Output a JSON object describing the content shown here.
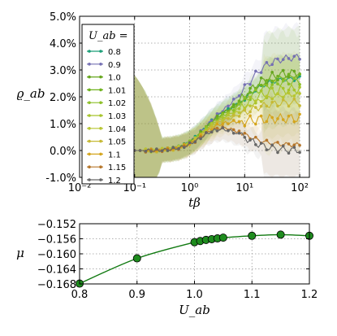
{
  "chart_data": [
    {
      "type": "line",
      "xlabel": "tβ",
      "ylabel": "ϱ_ab",
      "xscale": "log",
      "xlim": [
        0.01,
        150
      ],
      "ylim": [
        -1.0,
        5.0
      ],
      "xticks": [
        {
          "v": 0.01,
          "label": "10⁻²"
        },
        {
          "v": 0.1,
          "label": "10⁻¹"
        },
        {
          "v": 1,
          "label": "10⁰"
        },
        {
          "v": 10,
          "label": "10¹"
        },
        {
          "v": 100,
          "label": "10²"
        }
      ],
      "yticks": [
        {
          "v": -1,
          "label": "-1.0%"
        },
        {
          "v": 0,
          "label": "0.0%"
        },
        {
          "v": 1,
          "label": "1.0%"
        },
        {
          "v": 2,
          "label": "2.0%"
        },
        {
          "v": 3,
          "label": "3.0%"
        },
        {
          "v": 4,
          "label": "4.0%"
        },
        {
          "v": 5,
          "label": "5.0%"
        }
      ],
      "grid": true,
      "legend": {
        "title": "U_ab =",
        "placement": "top-left"
      },
      "series": [
        {
          "name": "0.8",
          "color": "#1b9e77",
          "final": 2.7
        },
        {
          "name": "0.9",
          "color": "#7570b3",
          "final": 3.5
        },
        {
          "name": "1.0",
          "color": "#66a61e",
          "final": 2.9
        },
        {
          "name": "1.01",
          "color": "#6fb11e",
          "final": 2.8
        },
        {
          "name": "1.02",
          "color": "#8cbf26",
          "final": 2.6
        },
        {
          "name": "1.03",
          "color": "#a6c42b",
          "final": 2.3
        },
        {
          "name": "1.04",
          "color": "#b7c530",
          "final": 2.1
        },
        {
          "name": "1.05",
          "color": "#c6b935",
          "final": 1.8
        },
        {
          "name": "1.1",
          "color": "#d4a51d",
          "final": 1.2
        },
        {
          "name": "1.15",
          "color": "#b6762a",
          "final": 0.2
        },
        {
          "name": "1.2",
          "color": "#666666",
          "final": 0.0
        }
      ]
    },
    {
      "type": "line",
      "xlabel": "U_ab",
      "ylabel": "μ",
      "xlim": [
        0.8,
        1.2
      ],
      "ylim": [
        -0.168,
        -0.152
      ],
      "xticks": [
        {
          "v": 0.8,
          "label": "0.8"
        },
        {
          "v": 0.9,
          "label": "0.9"
        },
        {
          "v": 1.0,
          "label": "1.0"
        },
        {
          "v": 1.1,
          "label": "1.1"
        },
        {
          "v": 1.2,
          "label": "1.2"
        }
      ],
      "yticks": [
        {
          "v": -0.168,
          "label": "−0.168"
        },
        {
          "v": -0.164,
          "label": "−0.164"
        },
        {
          "v": -0.16,
          "label": "−0.160"
        },
        {
          "v": -0.156,
          "label": "−0.156"
        },
        {
          "v": -0.152,
          "label": "−0.152"
        }
      ],
      "grid": true,
      "color": "#117a11",
      "marker_color": "#1e8c1e",
      "x": [
        0.8,
        0.9,
        1.0,
        1.01,
        1.02,
        1.03,
        1.04,
        1.05,
        1.1,
        1.15,
        1.2
      ],
      "y": [
        -0.1679,
        -0.1612,
        -0.1569,
        -0.1566,
        -0.1563,
        -0.1561,
        -0.1559,
        -0.1557,
        -0.1552,
        -0.1549,
        -0.1552
      ]
    }
  ]
}
